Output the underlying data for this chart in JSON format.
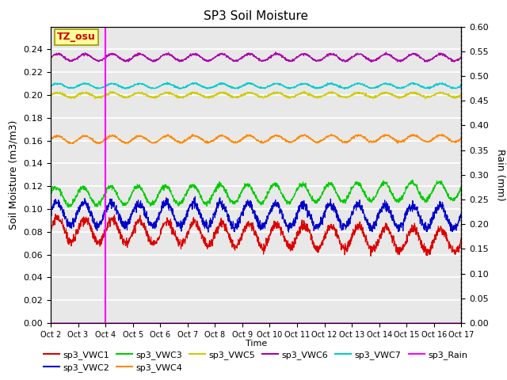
{
  "title": "SP3 Soil Moisture",
  "xlabel": "Time",
  "ylabel_left": "Soil Moisture (m3/m3)",
  "ylabel_right": "Rain (mm)",
  "ylim_left": [
    0,
    0.26
  ],
  "ylim_right": [
    0.0,
    0.6
  ],
  "x_tick_labels": [
    "Oct 2",
    "Oct 3",
    "Oct 4",
    "Oct 5",
    "Oct 6",
    "Oct 7",
    "Oct 8",
    "Oct 9",
    "Oct 10",
    "Oct 11",
    "Oct 12",
    "Oct 13",
    "Oct 14",
    "Oct 15",
    "Oct 16",
    "Oct 17"
  ],
  "vline_day": 2.0,
  "annotation_text": "TZ_osu",
  "annotation_color": "#cc0000",
  "annotation_bg": "#ffff99",
  "annotation_border": "#999900",
  "series_order": [
    "sp3_VWC1",
    "sp3_VWC2",
    "sp3_VWC3",
    "sp3_VWC4",
    "sp3_VWC5",
    "sp3_VWC6",
    "sp3_VWC7"
  ],
  "series": {
    "sp3_VWC1": {
      "color": "#dd0000",
      "base": 0.082,
      "amp": 0.01,
      "freq": 1.0,
      "trend": -0.01,
      "phase": 0.0,
      "noise": 0.002
    },
    "sp3_VWC2": {
      "color": "#0000cc",
      "base": 0.096,
      "amp": 0.01,
      "freq": 1.0,
      "trend": -0.003,
      "phase": 0.2,
      "noise": 0.002
    },
    "sp3_VWC3": {
      "color": "#00cc00",
      "base": 0.111,
      "amp": 0.008,
      "freq": 1.0,
      "trend": 0.005,
      "phase": 0.4,
      "noise": 0.001
    },
    "sp3_VWC4": {
      "color": "#ff8800",
      "base": 0.161,
      "amp": 0.003,
      "freq": 1.0,
      "trend": 0.001,
      "phase": 0.0,
      "noise": 0.0005
    },
    "sp3_VWC5": {
      "color": "#cccc00",
      "base": 0.2,
      "amp": 0.002,
      "freq": 1.0,
      "trend": 0.0,
      "phase": 0.0,
      "noise": 0.0005
    },
    "sp3_VWC6": {
      "color": "#aa00aa",
      "base": 0.233,
      "amp": 0.003,
      "freq": 1.0,
      "trend": 0.0,
      "phase": 0.0,
      "noise": 0.0005
    },
    "sp3_VWC7": {
      "color": "#00cccc",
      "base": 0.208,
      "amp": 0.002,
      "freq": 1.0,
      "trend": 0.0,
      "phase": 0.0,
      "noise": 0.0004
    }
  },
  "rain_color": "#ff00ff",
  "background_color": "#e8e8e8",
  "grid_color": "#ffffff",
  "linewidth": 0.8
}
